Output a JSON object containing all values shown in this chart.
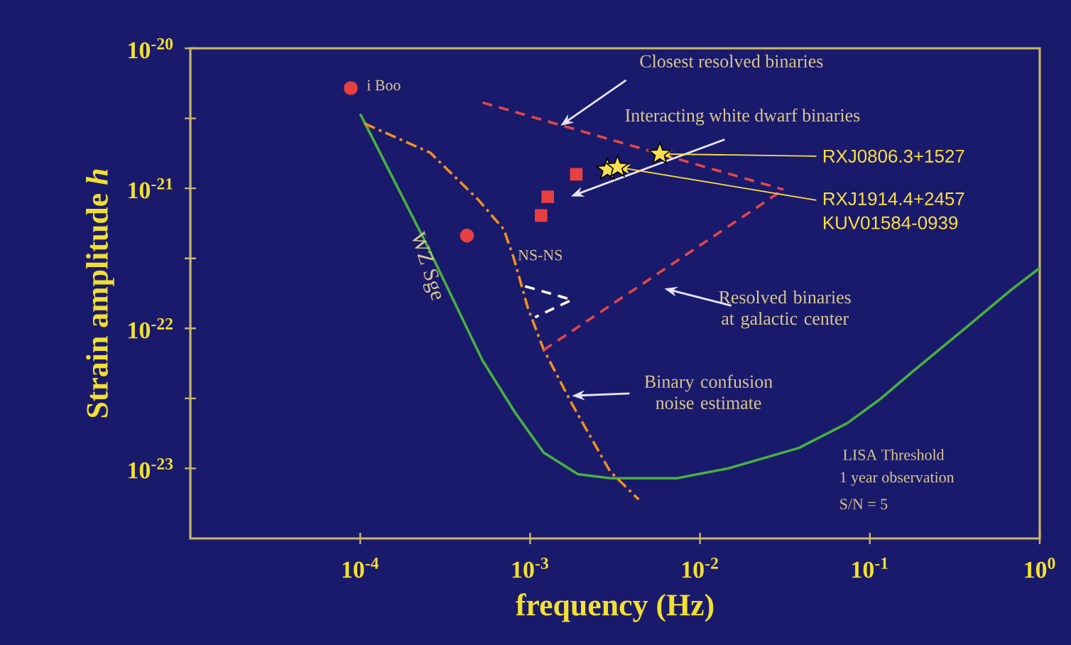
{
  "chart_data": {
    "type": "line",
    "xlabel": "frequency (Hz)",
    "ylabel": "Strain amplitude *h*",
    "log": "xy",
    "xlim": [
      1e-05,
      1
    ],
    "ylim": [
      3.16e-24,
      1e-20
    ],
    "xticks": [
      {
        "value": 0.0001,
        "label": "10$^{-4}$"
      },
      {
        "value": 0.001,
        "label": "10$^{-3}$"
      },
      {
        "value": 0.01,
        "label": "10$^{-2}$"
      },
      {
        "value": 0.1,
        "label": "10$^{-1}$"
      },
      {
        "value": 1,
        "label": "10$^{0}$"
      }
    ],
    "yticks": [
      {
        "value": 1e-20,
        "label": "10$^{-20}$"
      },
      {
        "value": 3.16e-21,
        "label": null
      },
      {
        "value": 1e-21,
        "label": "10$^{-21}$"
      },
      {
        "value": 3.16e-22,
        "label": null
      },
      {
        "value": 1e-22,
        "label": "10$^{-22}$"
      },
      {
        "value": 3.16e-23,
        "label": null
      },
      {
        "value": 1e-23,
        "label": "10$^{-23}$"
      }
    ],
    "series": [
      {
        "color": "#48b040",
        "line_style": "solid",
        "x": [
          0.0001,
          0.000243,
          0.000525,
          0.000817,
          0.0012,
          0.00191,
          0.00296,
          0.00731,
          0.0146,
          0.0382,
          0.0735,
          0.114,
          0.178,
          0.363,
          0.684,
          1.0
        ],
        "values": [
          3.4e-21,
          4.1e-22,
          5.9e-23,
          2.5e-23,
          1.3e-23,
          9.1e-24,
          8.5e-24,
          8.5e-24,
          1e-23,
          1.4e-23,
          2.1e-23,
          3.1e-23,
          4.9e-23,
          1e-22,
          1.9e-22,
          2.7e-22
        ]
      },
      {
        "color": "#f0901c",
        "line_style": "dashdot",
        "x": [
          0.000106,
          0.000258,
          0.000495,
          0.0007,
          0.0008,
          0.00097,
          0.0012,
          0.00176,
          0.00296,
          0.00436
        ],
        "values": [
          2.9e-21,
          1.8e-21,
          8.3e-22,
          5.1e-22,
          3.2e-22,
          1.4e-22,
          7.1e-23,
          2.9e-23,
          9.5e-24,
          6e-24
        ]
      },
      {
        "color": "#e04848",
        "line_style": "dashed",
        "x": [
          0.000525,
          0.031
        ],
        "values": [
          4.1e-21,
          9.8e-22
        ]
      },
      {
        "color": "#e04848",
        "line_style": "dashed",
        "x": [
          0.0012,
          0.031
        ],
        "values": [
          7e-23,
          9.8e-22
        ]
      },
      {
        "color": "#ffffff",
        "line_style": "dashed",
        "x": [
          0.000935,
          0.00176,
          0.00107
        ],
        "values": [
          2e-22,
          1.6e-22,
          1.2e-22
        ]
      },
      {
        "type": "scatter",
        "color": "#e84040",
        "marker": "circle",
        "x": [
          8.8e-05,
          0.000425
        ],
        "values": [
          5.2e-21,
          4.6e-22
        ]
      },
      {
        "type": "scatter",
        "color": "#e84040",
        "marker": "square",
        "x": [
          0.00187,
          0.00127,
          0.00116
        ],
        "values": [
          1.26e-21,
          8.7e-22,
          6.4e-22
        ]
      },
      {
        "type": "scatter",
        "color": "#f8e050",
        "marker": "star",
        "x": [
          0.0058,
          0.00285,
          0.00327
        ],
        "values": [
          1.76e-21,
          1.36e-21,
          1.42e-21
        ]
      }
    ],
    "annotations": [
      {
        "text": "Closest resolved binaries",
        "x": 0.00151,
        "y": 2.8e-21
      },
      "Interacting white dwarf binaries",
      {
        "text": "RXJ0806.3+1527",
        "x": 0.0058,
        "y": 1.76e-21
      },
      {
        "text": "RXJ1914.4+2457",
        "x": 0.00327,
        "y": 1.42e-21
      },
      "KUV01584-0939",
      "NS-NS",
      "Resolved binaries at galactic center",
      {
        "text": "Binary confusion noise estimate",
        "x": 0.00176,
        "y": 3.3e-23
      },
      "LISA Threshold",
      "1 year observation",
      "S/N = 5",
      {
        "text": "i Boo",
        "x": 8.8e-05,
        "y": 5.2e-21
      },
      {
        "text": "WZ Sge",
        "x": 0.000425,
        "y": 4.6e-22
      }
    ]
  }
}
